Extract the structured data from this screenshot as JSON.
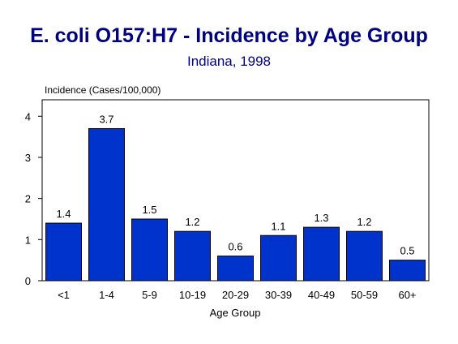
{
  "chart_data": {
    "type": "bar",
    "title": "E. coli O157:H7 - Incidence by Age Group",
    "subtitle": "Indiana, 1998",
    "ylabel": "Incidence (Cases/100,000)",
    "xlabel": "Age Group",
    "categories": [
      "<1",
      "1-4",
      "5-9",
      "10-19",
      "20-29",
      "30-39",
      "40-49",
      "50-59",
      "60+"
    ],
    "values": [
      1.4,
      3.7,
      1.5,
      1.2,
      0.6,
      1.1,
      1.3,
      1.2,
      0.5
    ],
    "data_labels": [
      "1.4",
      "3.7",
      "1.5",
      "1.2",
      "0.6",
      "1.1",
      "1.3",
      "1.2",
      "0.5"
    ],
    "ylim": [
      0,
      4.4
    ],
    "yticks": [
      0,
      1,
      2,
      3,
      4
    ],
    "grid": false,
    "legend": "none",
    "bar_color": "#0033CC",
    "title_color": "#000080"
  }
}
